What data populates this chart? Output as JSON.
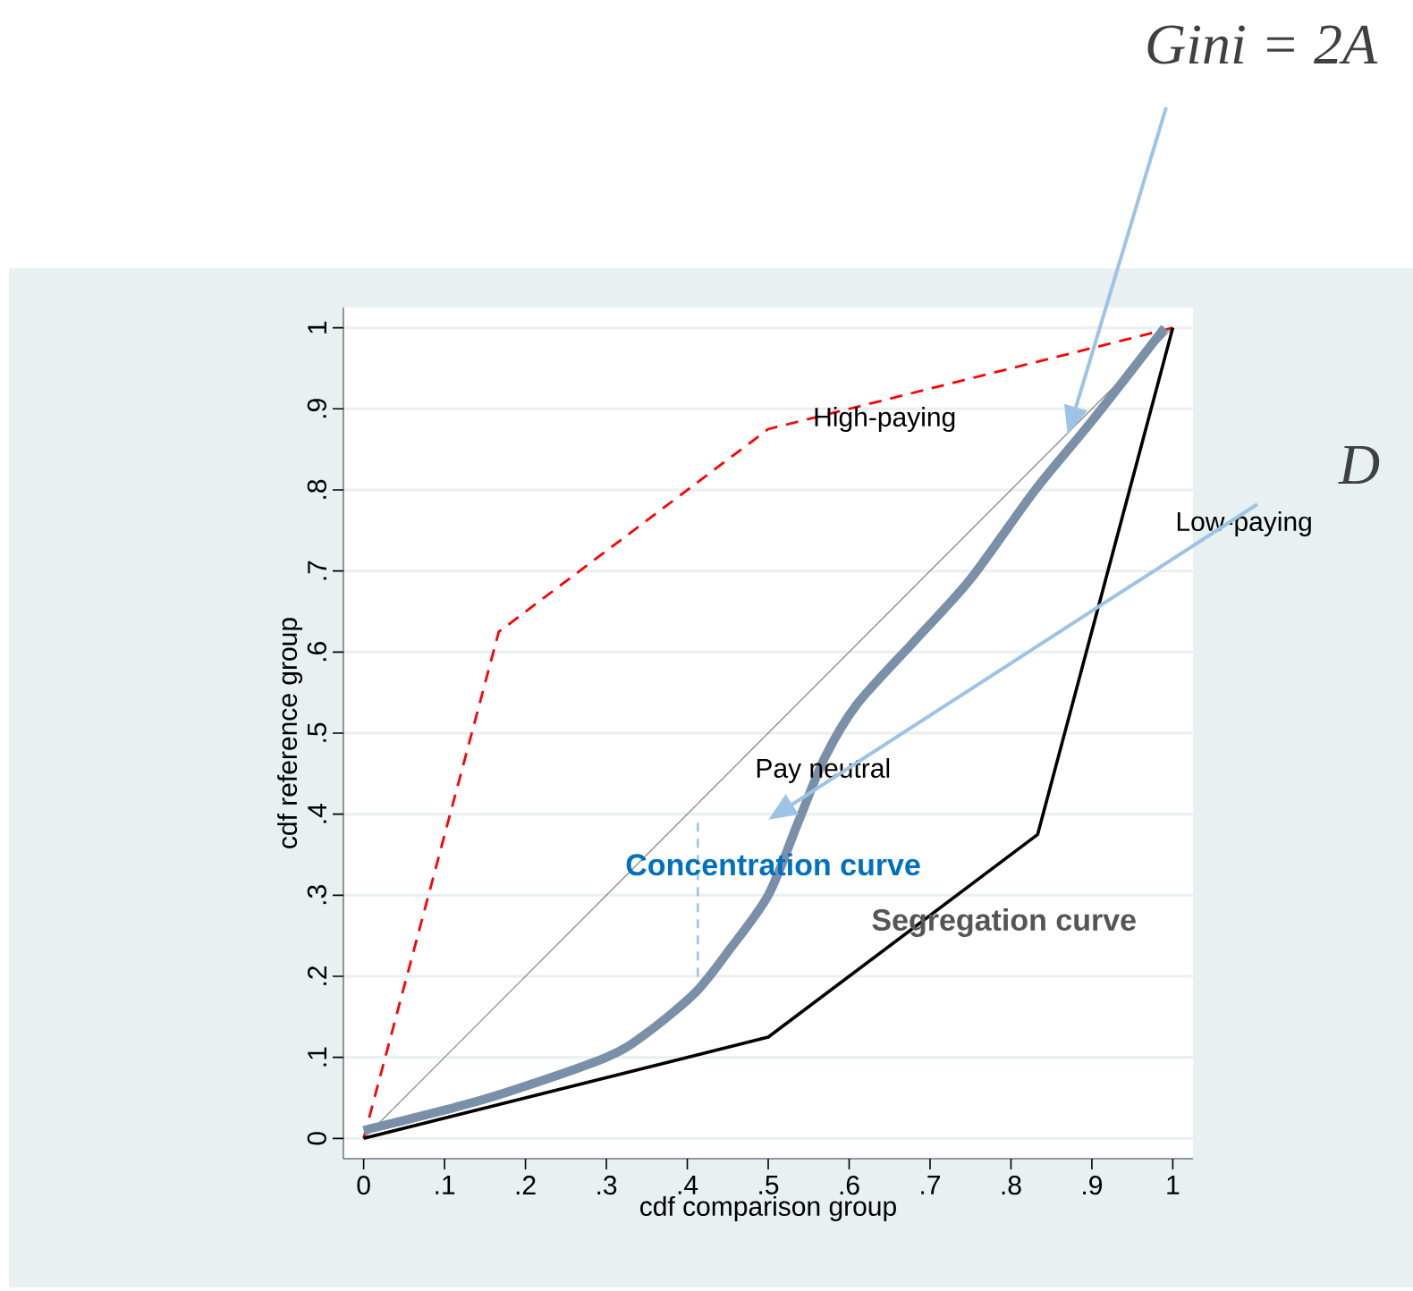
{
  "chart_data": {
    "type": "line",
    "xlabel": "cdf comparison group",
    "ylabel": "cdf reference group",
    "xlim": [
      -0.025,
      1.025
    ],
    "ylim": [
      -0.025,
      1.025
    ],
    "xticks": [
      0,
      {
        "value": 0.1,
        "label": ".1"
      },
      {
        "value": 0.2,
        "label": ".2"
      },
      {
        "value": 0.3,
        "label": ".3"
      },
      {
        "value": 0.4,
        "label": ".4"
      },
      {
        "value": 0.5,
        "label": ".5"
      },
      {
        "value": 0.6,
        "label": ".6"
      },
      {
        "value": 0.7,
        "label": ".7"
      },
      {
        "value": 0.8,
        "label": ".8"
      },
      {
        "value": 0.9,
        "label": ".9"
      },
      1
    ],
    "yticks": [
      0,
      {
        "value": 0.1,
        "label": ".1"
      },
      {
        "value": 0.2,
        "label": ".2"
      },
      {
        "value": 0.3,
        "label": ".3"
      },
      {
        "value": 0.4,
        "label": ".4"
      },
      {
        "value": 0.5,
        "label": ".5"
      },
      {
        "value": 0.6,
        "label": ".6"
      },
      {
        "value": 0.7,
        "label": ".7"
      },
      {
        "value": 0.8,
        "label": ".8"
      },
      {
        "value": 0.9,
        "label": ".9"
      },
      1
    ],
    "grid": "y",
    "marker": "none",
    "series": [
      {
        "color": "#808080",
        "x": [
          0,
          1
        ],
        "values": [
          0,
          1
        ],
        "line_style": "solid"
      },
      {
        "color": "#ff0000",
        "x": [
          0,
          0.167,
          0.5,
          1
        ],
        "values": [
          0,
          0.625,
          0.875,
          1
        ],
        "line_style": "dashed"
      },
      {
        "color": "#000000",
        "x": [
          0,
          0.5,
          0.833,
          1
        ],
        "values": [
          0,
          0.125,
          0.375,
          1
        ],
        "line_style": "solid"
      },
      {
        "color": "#9dc3e6",
        "x": [
          0.413,
          0.413
        ],
        "values": [
          0.18,
          0.39
        ],
        "line_style": "dashed"
      },
      {
        "color": "#7a90a8",
        "x": [
          0,
          0.1,
          0.168,
          0.3,
          0.35,
          0.41,
          0.45,
          0.5,
          0.537,
          0.57,
          0.61,
          0.684,
          0.75,
          0.83,
          0.9,
          0.99
        ],
        "values": [
          0.01,
          0.035,
          0.054,
          0.1,
          0.13,
          0.18,
          0.23,
          0.3,
          0.39,
          0.47,
          0.536,
          0.617,
          0.69,
          0.8,
          0.885,
          1.0
        ],
        "line_style": "solid"
      }
    ],
    "annotations": [
      {
        "text": "High-paying",
        "x": 0.555,
        "y": 0.887
      },
      "Pay neutral",
      {
        "text": "Concentration curve",
        "x": 0.323,
        "y": 0.338
      },
      "Segregation curve",
      "Low-paying",
      "Gini = 2A",
      "D"
    ]
  }
}
